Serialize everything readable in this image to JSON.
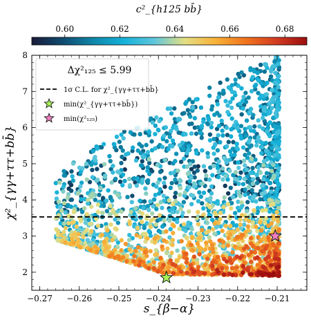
{
  "chart_data": {
    "type": "scatter",
    "title": "",
    "xlabel": "s_{β−α}",
    "ylabel": "χ²_{γγ+ττ+bb̄}",
    "xlim": [
      -0.272,
      -0.2025
    ],
    "ylim": [
      1.5,
      8.0
    ],
    "xticks": [
      -0.27,
      -0.26,
      -0.25,
      -0.24,
      -0.23,
      -0.22,
      -0.21
    ],
    "xtick_labels": [
      "−0.27",
      "−0.26",
      "−0.25",
      "−0.24",
      "−0.23",
      "−0.22",
      "−0.21"
    ],
    "yticks": [
      2,
      3,
      4,
      5,
      6,
      7,
      8
    ],
    "ytick_labels": [
      "2",
      "3",
      "4",
      "5",
      "6",
      "7",
      "8"
    ],
    "grid": false,
    "colorbar": {
      "label": "c²_{h125 bb̄}",
      "range": [
        0.588,
        0.688
      ],
      "ticks": [
        0.6,
        0.62,
        0.64,
        0.66,
        0.68
      ],
      "tick_labels": [
        "0.60",
        "0.62",
        "0.64",
        "0.66",
        "0.68"
      ],
      "colormap": [
        "#1b1b3a",
        "#0f4a6e",
        "#0f86a8",
        "#15b1d9",
        "#5ec6dc",
        "#e3df83",
        "#f8b23a",
        "#f0741d",
        "#d33c22",
        "#9b0e0e"
      ]
    },
    "hline": {
      "y": 3.53,
      "style": "dashed",
      "label": "1σ C.L. for χ²_{γγ+ττ+bb̄}"
    },
    "legend": {
      "placement": "top-left",
      "title": "Δχ²₁₂₅ ≤ 5.99",
      "entries": [
        {
          "label": "1σ C.L. for χ²_{γγ+ττ+bb̄}",
          "marker": "dashed-line",
          "color": "#000000"
        },
        {
          "label": "min(χ²_{γγ+ττ+bb̄})",
          "marker": "star",
          "color": "#a8f05a"
        },
        {
          "label": "min(χ²₁₂₅)",
          "marker": "star",
          "color": "#f07fc2"
        }
      ]
    },
    "special_points": [
      {
        "name": "min(χ²_{γγ+ττ+bb̄})",
        "x": -0.238,
        "y": 1.85,
        "color": "#a8f05a"
      },
      {
        "name": "min(χ²₁₂₅)",
        "x": -0.2105,
        "y": 3.0,
        "color": "#f07fc2"
      }
    ],
    "scatter_spec": {
      "count": 2600,
      "x_range": [
        -0.266,
        -0.2095
      ],
      "y_range": [
        1.9,
        8.0
      ],
      "color_variable": "c²_{h125 bb̄}",
      "note": "dense cloud concentrated at x ≳ −0.245 and y ≲ 4; color rises toward red at low y"
    }
  }
}
